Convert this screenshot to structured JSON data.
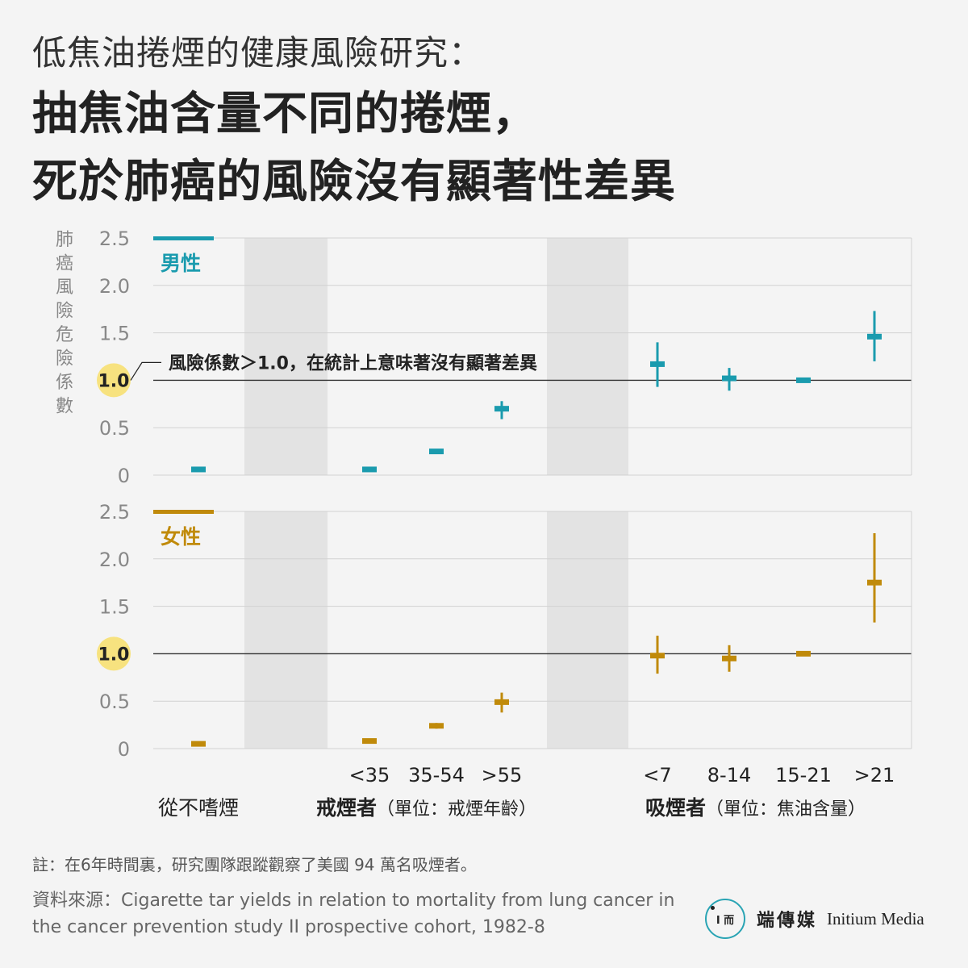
{
  "header": {
    "subtitle": "低焦油捲煙的健康風險研究：",
    "headline_line1": "抽焦油含量不同的捲煙，",
    "headline_line2": "死於肺癌的風險沒有顯著性差異"
  },
  "colors": {
    "male": "#1a9bae",
    "female": "#c08a0a",
    "highlight": "#f7e27f",
    "band": "#e3e3e3"
  },
  "chart_data": {
    "type": "scatter",
    "ylabel": "肺癌風險危險係數",
    "ylim": [
      0,
      2.5
    ],
    "yticks": [
      "0",
      "0.5",
      "1.0",
      "1.5",
      "2.0",
      "2.5"
    ],
    "reference_line": 1.0,
    "annotation": "風險係數＞1.0，在統計上意味著沒有顯著差異",
    "categories": [
      "從不嗜煙",
      "<35",
      "35-54",
      ">55",
      "<7",
      "8-14",
      "15-21",
      ">21"
    ],
    "groups": [
      {
        "label_bold": "戒煙者",
        "label_unit": "（單位：戒煙年齡）"
      },
      {
        "label_bold": "吸煙者",
        "label_unit": "（單位：焦油含量）"
      }
    ],
    "panels": [
      {
        "name": "男性",
        "color": "#1a9bae",
        "values": [
          0.06,
          0.06,
          0.25,
          0.7,
          1.17,
          1.02,
          1.0,
          1.46
        ],
        "lower": [
          0.06,
          0.06,
          0.25,
          0.59,
          0.93,
          0.89,
          1.0,
          1.2
        ],
        "upper": [
          0.06,
          0.06,
          0.25,
          0.78,
          1.4,
          1.13,
          1.0,
          1.73
        ]
      },
      {
        "name": "女性",
        "color": "#c08a0a",
        "values": [
          0.05,
          0.08,
          0.24,
          0.49,
          0.98,
          0.95,
          1.0,
          1.75
        ],
        "lower": [
          0.05,
          0.08,
          0.21,
          0.38,
          0.79,
          0.81,
          1.0,
          1.33
        ],
        "upper": [
          0.05,
          0.08,
          0.27,
          0.59,
          1.19,
          1.09,
          1.0,
          2.27
        ]
      }
    ]
  },
  "footer": {
    "note": "註：在6年時間裏，研究團隊跟蹤觀察了美國 94 萬名吸煙者。",
    "source": "資料來源：Cigarette tar yields in relation to mortality from lung cancer in the cancer prevention study II prospective cohort, 1982-8"
  },
  "logo": {
    "mark": "I 而",
    "zh": "端傳媒",
    "en": "Initium Media"
  }
}
